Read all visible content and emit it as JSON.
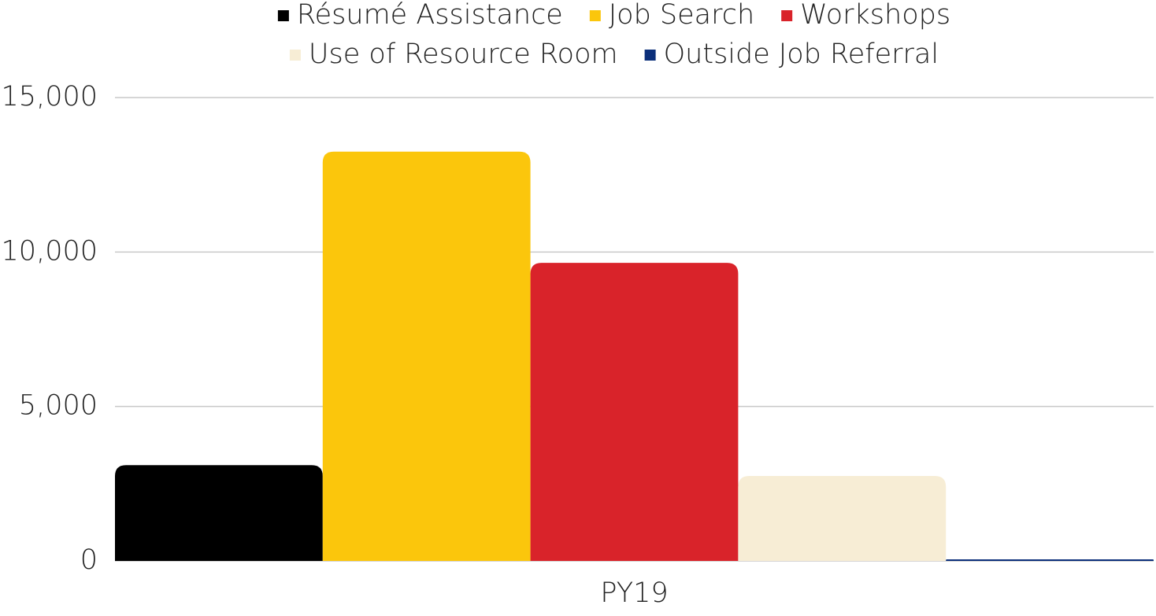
{
  "chart_data": {
    "type": "bar",
    "categories": [
      "PY19"
    ],
    "series": [
      {
        "name": "Résumé Assistance",
        "color": "#000000",
        "values": [
          3100
        ]
      },
      {
        "name": "Job Search",
        "color": "#fbc60c",
        "values": [
          13250
        ]
      },
      {
        "name": "Workshops",
        "color": "#d9232a",
        "values": [
          9650
        ]
      },
      {
        "name": "Use of Resource Room",
        "color": "#f7edd5",
        "values": [
          2750
        ]
      },
      {
        "name": "Outside Job Referral",
        "color": "#0b2f7a",
        "values": [
          50
        ]
      }
    ],
    "ylim": [
      0,
      15000
    ],
    "yticks": [
      0,
      {
        "value": 5000,
        "label": "5,000"
      },
      {
        "value": 10000,
        "label": "10,000"
      },
      {
        "value": 15000,
        "label": "15,000"
      }
    ],
    "grid": true,
    "legend": "top"
  }
}
